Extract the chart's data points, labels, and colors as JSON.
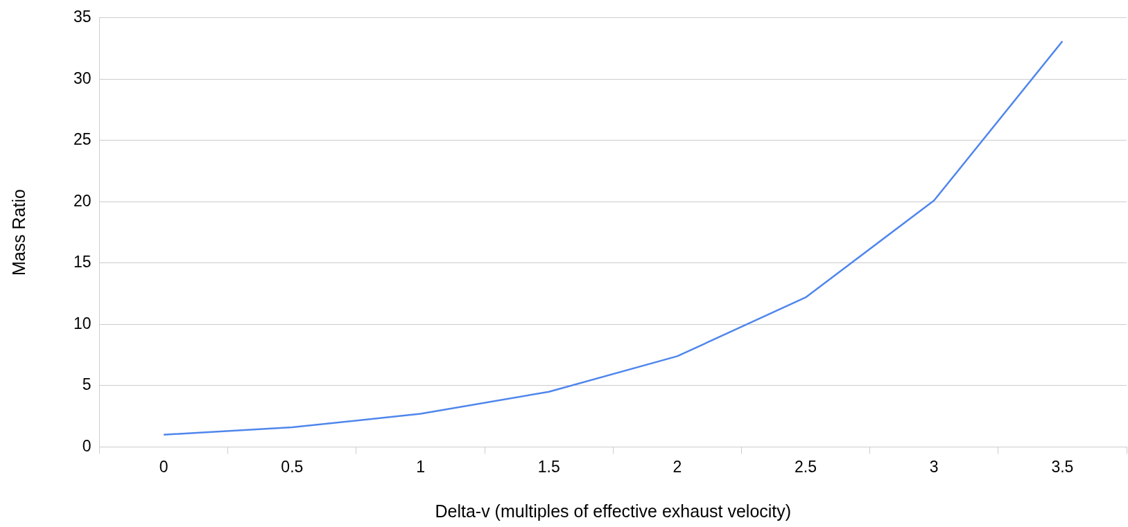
{
  "chart_data": {
    "type": "line",
    "xlabel": "Delta-v (multiples of effective exhaust velocity)",
    "ylabel": "Mass Ratio",
    "categories": [
      "0",
      "0.5",
      "1",
      "1.5",
      "2",
      "2.5",
      "3",
      "3.5"
    ],
    "series": [
      {
        "color": "#4f86ec",
        "values": [
          1,
          1.6,
          2.7,
          4.5,
          7.4,
          12.2,
          20.1,
          33.1
        ]
      }
    ],
    "ylim": [
      0,
      35
    ],
    "yticks": [
      0,
      5,
      10,
      15,
      20,
      25,
      30,
      35
    ],
    "grid": "y",
    "legend": false,
    "marker": "none",
    "line_style": "solid"
  }
}
